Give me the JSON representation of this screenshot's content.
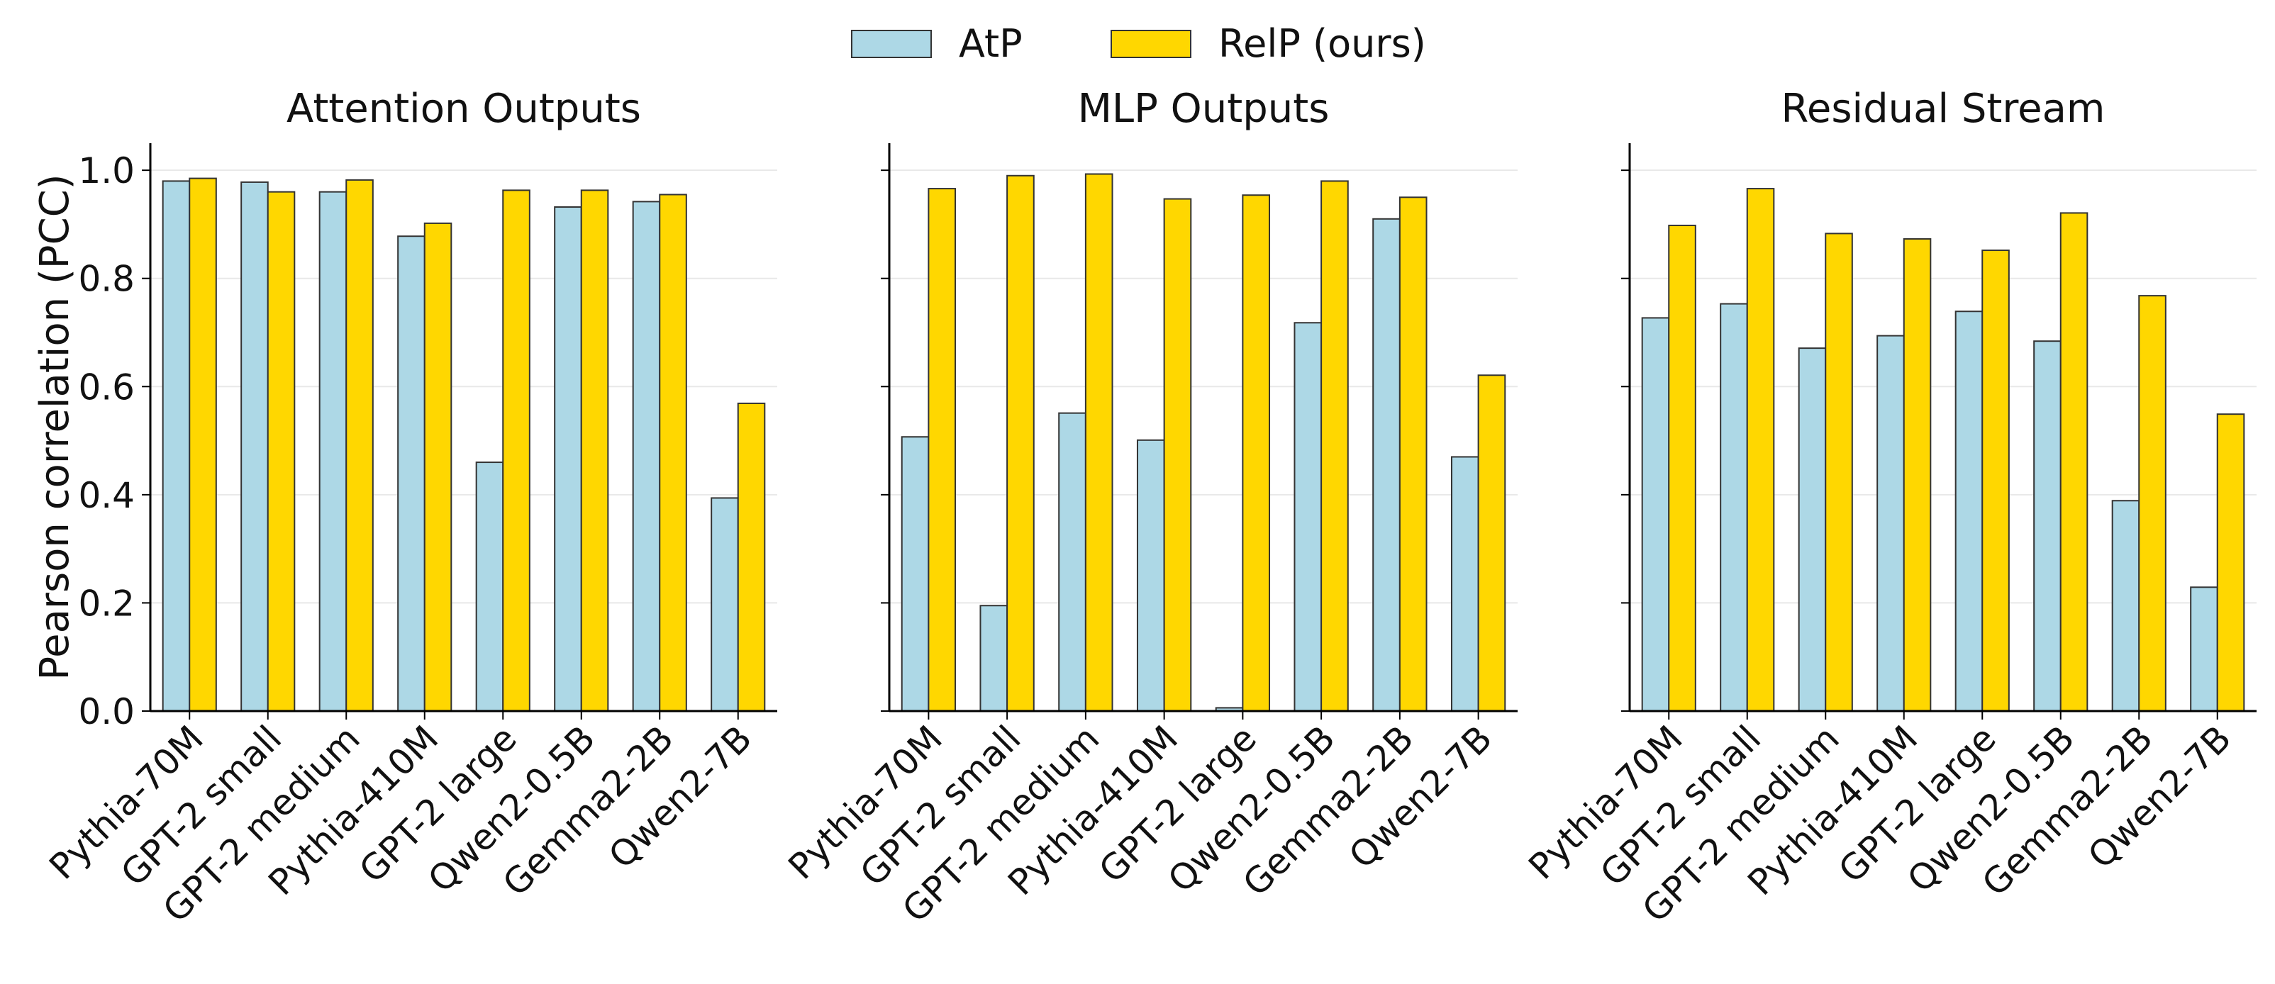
{
  "legend": {
    "atp": "AtP",
    "relp": "RelP (ours)"
  },
  "colors": {
    "atp": "#add8e6",
    "relp": "#ffd700",
    "edge": "#333333",
    "grid": "#e8e8e8",
    "axis": "#000000"
  },
  "chart_data": [
    {
      "type": "bar",
      "title": "Attention Outputs",
      "ylabel": "Pearson correlation (PCC)",
      "ylim": [
        0,
        1.05
      ],
      "yticks": [
        "0.0",
        "0.2",
        "0.4",
        "0.6",
        "0.8",
        "1.0"
      ],
      "grid": "horizontal",
      "categories": [
        "Pythia-70M",
        "GPT-2 small",
        "GPT-2 medium",
        "Pythia-410M",
        "GPT-2 large",
        "Qwen2-0.5B",
        "Gemma2-2B",
        "Qwen2-7B"
      ],
      "series": [
        {
          "name": "AtP",
          "values": [
            0.98,
            0.978,
            0.96,
            0.878,
            0.46,
            0.932,
            0.942,
            0.394
          ]
        },
        {
          "name": "RelP (ours)",
          "values": [
            0.985,
            0.96,
            0.982,
            0.902,
            0.963,
            0.963,
            0.955,
            0.569
          ]
        }
      ]
    },
    {
      "type": "bar",
      "title": "MLP Outputs",
      "ylabel": "",
      "ylim": [
        0,
        1.05
      ],
      "yticks": [
        "0.0",
        "0.2",
        "0.4",
        "0.6",
        "0.8",
        "1.0"
      ],
      "grid": "horizontal",
      "categories": [
        "Pythia-70M",
        "GPT-2 small",
        "GPT-2 medium",
        "Pythia-410M",
        "GPT-2 large",
        "Qwen2-0.5B",
        "Gemma2-2B",
        "Qwen2-7B"
      ],
      "series": [
        {
          "name": "AtP",
          "values": [
            0.507,
            0.195,
            0.551,
            0.501,
            0.006,
            0.718,
            0.91,
            0.47
          ]
        },
        {
          "name": "RelP (ours)",
          "values": [
            0.966,
            0.99,
            0.993,
            0.947,
            0.954,
            0.98,
            0.95,
            0.621
          ]
        }
      ]
    },
    {
      "type": "bar",
      "title": "Residual Stream",
      "ylabel": "",
      "ylim": [
        0,
        1.05
      ],
      "yticks": [
        "0.0",
        "0.2",
        "0.4",
        "0.6",
        "0.8",
        "1.0"
      ],
      "grid": "horizontal",
      "categories": [
        "Pythia-70M",
        "GPT-2 small",
        "GPT-2 medium",
        "Pythia-410M",
        "GPT-2 large",
        "Qwen2-0.5B",
        "Gemma2-2B",
        "Qwen2-7B"
      ],
      "series": [
        {
          "name": "AtP",
          "values": [
            0.727,
            0.753,
            0.671,
            0.694,
            0.739,
            0.684,
            0.389,
            0.229
          ]
        },
        {
          "name": "RelP (ours)",
          "values": [
            0.898,
            0.966,
            0.883,
            0.873,
            0.852,
            0.921,
            0.768,
            0.549
          ]
        }
      ]
    }
  ]
}
